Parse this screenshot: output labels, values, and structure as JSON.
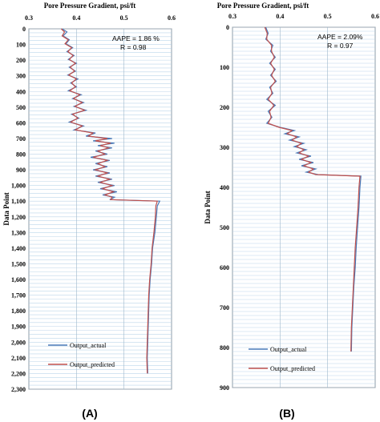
{
  "colors": {
    "actual": "#4a7ab8",
    "predicted": "#c0504d"
  },
  "chart_data": [
    {
      "type": "line",
      "panel_label": "(A)",
      "title": "Pore Pressure Gradient, psi/ft",
      "xlabel": "Pore Pressure Gradient, psi/ft",
      "ylabel": "Data Point",
      "xlim": [
        0.3,
        0.6
      ],
      "ylim": [
        0,
        2300
      ],
      "x_ticks": [
        "0.3",
        "0.4",
        "0.5",
        "0.6"
      ],
      "y_ticks": [
        "0",
        "100",
        "200",
        "300",
        "400",
        "500",
        "600",
        "700",
        "800",
        "900",
        "1,000",
        "1,100",
        "1,200",
        "1,300",
        "1,400",
        "1,500",
        "1,600",
        "1,700",
        "1,800",
        "1,900",
        "2,000",
        "2,100",
        "2,200",
        "2,300"
      ],
      "grid": true,
      "legend_position": "bottom-left",
      "stats": {
        "aape": "AAPE = 1.86 %",
        "r": "R = 0.98"
      },
      "series": [
        {
          "name": "Output_actual",
          "points": [
            [
              0.37,
              0
            ],
            [
              0.38,
              20
            ],
            [
              0.372,
              45
            ],
            [
              0.385,
              70
            ],
            [
              0.378,
              95
            ],
            [
              0.392,
              120
            ],
            [
              0.38,
              145
            ],
            [
              0.395,
              170
            ],
            [
              0.383,
              195
            ],
            [
              0.4,
              220
            ],
            [
              0.385,
              245
            ],
            [
              0.398,
              270
            ],
            [
              0.382,
              295
            ],
            [
              0.403,
              320
            ],
            [
              0.388,
              345
            ],
            [
              0.4,
              370
            ],
            [
              0.383,
              395
            ],
            [
              0.41,
              420
            ],
            [
              0.392,
              445
            ],
            [
              0.415,
              470
            ],
            [
              0.395,
              495
            ],
            [
              0.42,
              520
            ],
            [
              0.39,
              545
            ],
            [
              0.405,
              570
            ],
            [
              0.385,
              595
            ],
            [
              0.415,
              620
            ],
            [
              0.395,
              645
            ],
            [
              0.44,
              665
            ],
            [
              0.42,
              685
            ],
            [
              0.475,
              700
            ],
            [
              0.435,
              715
            ],
            [
              0.48,
              730
            ],
            [
              0.445,
              745
            ],
            [
              0.475,
              760
            ],
            [
              0.44,
              780
            ],
            [
              0.465,
              800
            ],
            [
              0.43,
              820
            ],
            [
              0.47,
              840
            ],
            [
              0.44,
              860
            ],
            [
              0.465,
              880
            ],
            [
              0.435,
              900
            ],
            [
              0.47,
              920
            ],
            [
              0.44,
              940
            ],
            [
              0.475,
              960
            ],
            [
              0.445,
              980
            ],
            [
              0.48,
              1000
            ],
            [
              0.45,
              1020
            ],
            [
              0.485,
              1040
            ],
            [
              0.455,
              1060
            ],
            [
              0.48,
              1075
            ],
            [
              0.47,
              1090
            ],
            [
              0.575,
              1100
            ],
            [
              0.57,
              1130
            ],
            [
              0.568,
              1200
            ],
            [
              0.565,
              1300
            ],
            [
              0.56,
              1400
            ],
            [
              0.558,
              1500
            ],
            [
              0.555,
              1600
            ],
            [
              0.553,
              1700
            ],
            [
              0.552,
              1800
            ],
            [
              0.551,
              1900
            ],
            [
              0.55,
              2000
            ],
            [
              0.549,
              2100
            ],
            [
              0.55,
              2200
            ]
          ]
        },
        {
          "name": "Output_predicted",
          "points": [
            [
              0.368,
              0
            ],
            [
              0.375,
              20
            ],
            [
              0.37,
              45
            ],
            [
              0.383,
              70
            ],
            [
              0.376,
              95
            ],
            [
              0.39,
              120
            ],
            [
              0.382,
              145
            ],
            [
              0.393,
              170
            ],
            [
              0.385,
              195
            ],
            [
              0.398,
              220
            ],
            [
              0.387,
              245
            ],
            [
              0.396,
              270
            ],
            [
              0.384,
              295
            ],
            [
              0.4,
              320
            ],
            [
              0.39,
              345
            ],
            [
              0.398,
              370
            ],
            [
              0.386,
              395
            ],
            [
              0.407,
              420
            ],
            [
              0.394,
              445
            ],
            [
              0.412,
              470
            ],
            [
              0.397,
              495
            ],
            [
              0.417,
              520
            ],
            [
              0.392,
              545
            ],
            [
              0.403,
              570
            ],
            [
              0.388,
              595
            ],
            [
              0.412,
              620
            ],
            [
              0.398,
              645
            ],
            [
              0.435,
              665
            ],
            [
              0.425,
              685
            ],
            [
              0.465,
              700
            ],
            [
              0.44,
              715
            ],
            [
              0.472,
              730
            ],
            [
              0.45,
              745
            ],
            [
              0.468,
              760
            ],
            [
              0.445,
              780
            ],
            [
              0.46,
              800
            ],
            [
              0.435,
              820
            ],
            [
              0.465,
              840
            ],
            [
              0.445,
              860
            ],
            [
              0.46,
              880
            ],
            [
              0.44,
              900
            ],
            [
              0.465,
              920
            ],
            [
              0.445,
              940
            ],
            [
              0.47,
              960
            ],
            [
              0.45,
              980
            ],
            [
              0.475,
              1000
            ],
            [
              0.455,
              1020
            ],
            [
              0.478,
              1040
            ],
            [
              0.46,
              1060
            ],
            [
              0.475,
              1075
            ],
            [
              0.472,
              1090
            ],
            [
              0.57,
              1100
            ],
            [
              0.567,
              1130
            ],
            [
              0.566,
              1200
            ],
            [
              0.563,
              1300
            ],
            [
              0.559,
              1400
            ],
            [
              0.557,
              1500
            ],
            [
              0.554,
              1600
            ],
            [
              0.552,
              1700
            ],
            [
              0.551,
              1800
            ],
            [
              0.55,
              1900
            ],
            [
              0.549,
              2000
            ],
            [
              0.548,
              2100
            ],
            [
              0.549,
              2200
            ]
          ]
        }
      ]
    },
    {
      "type": "line",
      "panel_label": "(B)",
      "title": "Pore Pressure Gradient, psi/ft",
      "xlabel": "Pore Pressure Gradient, psi/ft",
      "ylabel": "Data Point",
      "xlim": [
        0.3,
        0.6
      ],
      "ylim": [
        0,
        900
      ],
      "x_ticks": [
        "0.3",
        "0.4",
        "0.5",
        "0.6"
      ],
      "y_ticks": [
        "0",
        "100",
        "200",
        "300",
        "400",
        "500",
        "600",
        "700",
        "800",
        "900"
      ],
      "grid": true,
      "legend_position": "bottom-left",
      "stats": {
        "aape": "AAPE = 2.09%",
        "r": "R = 0.97"
      },
      "series": [
        {
          "name": "Output_actual",
          "points": [
            [
              0.37,
              0
            ],
            [
              0.375,
              15
            ],
            [
              0.37,
              30
            ],
            [
              0.385,
              45
            ],
            [
              0.38,
              60
            ],
            [
              0.39,
              75
            ],
            [
              0.378,
              90
            ],
            [
              0.39,
              105
            ],
            [
              0.38,
              120
            ],
            [
              0.392,
              135
            ],
            [
              0.378,
              150
            ],
            [
              0.385,
              165
            ],
            [
              0.372,
              180
            ],
            [
              0.39,
              195
            ],
            [
              0.375,
              210
            ],
            [
              0.383,
              225
            ],
            [
              0.372,
              240
            ],
            [
              0.4,
              250
            ],
            [
              0.43,
              258
            ],
            [
              0.41,
              266
            ],
            [
              0.44,
              274
            ],
            [
              0.42,
              282
            ],
            [
              0.45,
              290
            ],
            [
              0.43,
              298
            ],
            [
              0.455,
              306
            ],
            [
              0.435,
              314
            ],
            [
              0.465,
              322
            ],
            [
              0.44,
              330
            ],
            [
              0.47,
              338
            ],
            [
              0.445,
              346
            ],
            [
              0.475,
              354
            ],
            [
              0.455,
              362
            ],
            [
              0.48,
              368
            ],
            [
              0.57,
              372
            ],
            [
              0.568,
              400
            ],
            [
              0.566,
              450
            ],
            [
              0.563,
              500
            ],
            [
              0.56,
              550
            ],
            [
              0.558,
              600
            ],
            [
              0.555,
              650
            ],
            [
              0.553,
              700
            ],
            [
              0.551,
              750
            ],
            [
              0.55,
              810
            ]
          ]
        },
        {
          "name": "Output_predicted",
          "points": [
            [
              0.368,
              0
            ],
            [
              0.373,
              15
            ],
            [
              0.372,
              30
            ],
            [
              0.382,
              45
            ],
            [
              0.382,
              60
            ],
            [
              0.388,
              75
            ],
            [
              0.38,
              90
            ],
            [
              0.388,
              105
            ],
            [
              0.382,
              120
            ],
            [
              0.39,
              135
            ],
            [
              0.38,
              150
            ],
            [
              0.383,
              165
            ],
            [
              0.375,
              180
            ],
            [
              0.387,
              195
            ],
            [
              0.378,
              210
            ],
            [
              0.381,
              225
            ],
            [
              0.375,
              240
            ],
            [
              0.398,
              250
            ],
            [
              0.425,
              258
            ],
            [
              0.415,
              266
            ],
            [
              0.435,
              274
            ],
            [
              0.425,
              282
            ],
            [
              0.445,
              290
            ],
            [
              0.435,
              298
            ],
            [
              0.45,
              306
            ],
            [
              0.44,
              314
            ],
            [
              0.46,
              322
            ],
            [
              0.445,
              330
            ],
            [
              0.465,
              338
            ],
            [
              0.45,
              346
            ],
            [
              0.47,
              354
            ],
            [
              0.46,
              362
            ],
            [
              0.475,
              368
            ],
            [
              0.568,
              372
            ],
            [
              0.566,
              400
            ],
            [
              0.564,
              450
            ],
            [
              0.561,
              500
            ],
            [
              0.558,
              550
            ],
            [
              0.556,
              600
            ],
            [
              0.554,
              650
            ],
            [
              0.552,
              700
            ],
            [
              0.55,
              750
            ],
            [
              0.549,
              810
            ]
          ]
        }
      ]
    }
  ]
}
